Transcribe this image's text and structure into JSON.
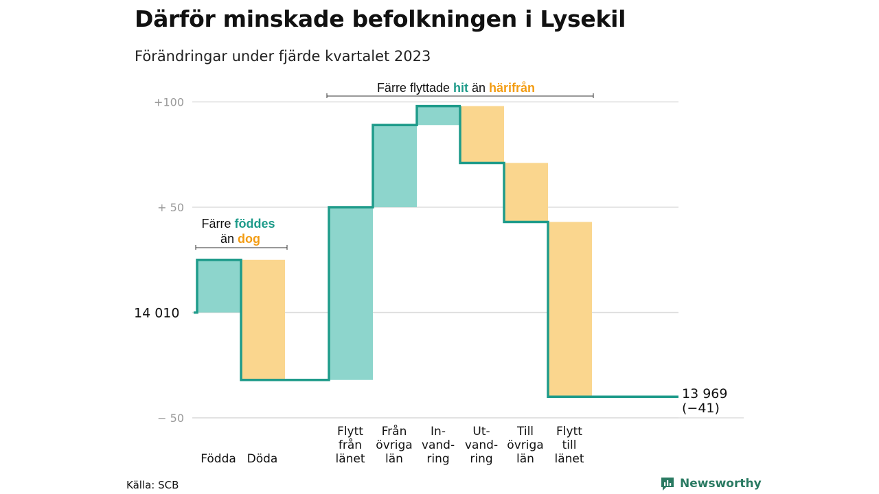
{
  "header": {
    "title": "Därför minskade befolkningen i Lysekil",
    "subtitle": "Förändringar under fjärde kvartalet 2023"
  },
  "footer": {
    "source": "Källa: SCB",
    "brand": "Newsworthy"
  },
  "colors": {
    "teal_line": "#1e9b8a",
    "teal_fill": "#8dd5cc",
    "orange_fill": "#fad68e",
    "orange_text": "#f39c12",
    "grid": "#dddddd"
  },
  "chart_data": {
    "type": "waterfall",
    "start": {
      "value": 14010,
      "label": "14  010"
    },
    "end": {
      "value": 13969,
      "label_value": "13 969",
      "label_change": "(−41)"
    },
    "yaxis": {
      "ticks": [
        {
          "value": 100,
          "label": "+100"
        },
        {
          "value": 50,
          "label": "+  50"
        },
        {
          "value": -50,
          "label": "−  50"
        }
      ],
      "ylim": [
        -50,
        100
      ]
    },
    "steps": [
      {
        "group": 1,
        "label_lines": [
          "Födda"
        ],
        "change": 25,
        "kind": "in"
      },
      {
        "group": 1,
        "label_lines": [
          "Döda"
        ],
        "change": -57,
        "kind": "out"
      },
      {
        "group": 2,
        "label_lines": [
          "Flytt",
          "från",
          "länet"
        ],
        "change": 82,
        "kind": "in"
      },
      {
        "group": 2,
        "label_lines": [
          "Från",
          "övriga",
          "län"
        ],
        "change": 39,
        "kind": "in"
      },
      {
        "group": 2,
        "label_lines": [
          "In-",
          "vand-",
          "ring"
        ],
        "change": 9,
        "kind": "in"
      },
      {
        "group": 2,
        "label_lines": [
          "Ut-",
          "vand-",
          "ring"
        ],
        "change": -27,
        "kind": "out"
      },
      {
        "group": 2,
        "label_lines": [
          "Till",
          "övriga",
          "län"
        ],
        "change": -28,
        "kind": "out"
      },
      {
        "group": 2,
        "label_lines": [
          "Flytt",
          "till",
          "länet"
        ],
        "change": -83,
        "kind": "out"
      }
    ],
    "annotations": {
      "natural": {
        "parts": [
          {
            "line": 1,
            "text": "Färre ",
            "style": "plain"
          },
          {
            "line": 1,
            "text": "föddes",
            "style": "teal"
          },
          {
            "line": 2,
            "text": "än ",
            "style": "plain"
          },
          {
            "line": 2,
            "text": "dog",
            "style": "orange"
          }
        ]
      },
      "migration": {
        "parts": [
          {
            "line": 1,
            "text": "Färre flyttade ",
            "style": "plain"
          },
          {
            "line": 1,
            "text": "hit",
            "style": "teal"
          },
          {
            "line": 1,
            "text": " än ",
            "style": "plain"
          },
          {
            "line": 1,
            "text": "härifrån",
            "style": "orange"
          }
        ]
      }
    }
  }
}
